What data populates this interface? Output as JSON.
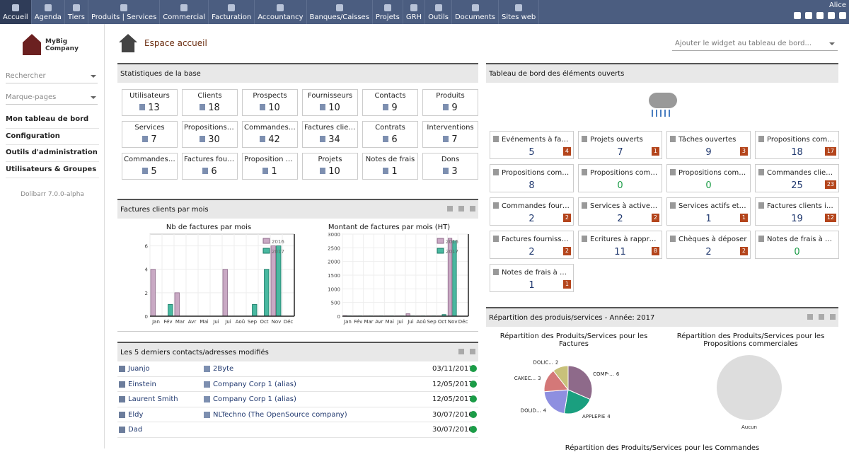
{
  "menu": [
    {
      "label": "Accueil",
      "active": true
    },
    {
      "label": "Agenda"
    },
    {
      "label": "Tiers"
    },
    {
      "label": "Produits | Services"
    },
    {
      "label": "Commercial"
    },
    {
      "label": "Facturation"
    },
    {
      "label": "Accountancy"
    },
    {
      "label": "Banques/Caisses"
    },
    {
      "label": "Projets"
    },
    {
      "label": "GRH"
    },
    {
      "label": "Outils"
    },
    {
      "label": "Documents"
    },
    {
      "label": "Sites web"
    }
  ],
  "user": "Alice",
  "logo": {
    "line1": "MyBig",
    "line2": "Company"
  },
  "sidebar": {
    "search_placeholder": "Rechercher",
    "bookmarks_placeholder": "Marque-pages",
    "nav": [
      "Mon tableau de bord",
      "Configuration",
      "Outils d'administration",
      "Utilisateurs & Groupes"
    ],
    "version": "Dolibarr 7.0.0-alpha"
  },
  "page_title": "Espace accueil",
  "widget_placeholder": "Ajouter le widget au tableau de bord...",
  "stats_box": {
    "title": "Statistiques de la base",
    "items": [
      {
        "label": "Utilisateurs",
        "value": "13"
      },
      {
        "label": "Clients",
        "value": "18"
      },
      {
        "label": "Prospects",
        "value": "10"
      },
      {
        "label": "Fournisseurs",
        "value": "10"
      },
      {
        "label": "Contacts",
        "value": "9"
      },
      {
        "label": "Produits",
        "value": "9"
      },
      {
        "label": "Services",
        "value": "7"
      },
      {
        "label": "Propositions/de...",
        "value": "30"
      },
      {
        "label": "Commandes cli...",
        "value": "42"
      },
      {
        "label": "Factures clients",
        "value": "34"
      },
      {
        "label": "Contrats",
        "value": "6"
      },
      {
        "label": "Interventions",
        "value": "7"
      },
      {
        "label": "Commandes fo...",
        "value": "5"
      },
      {
        "label": "Factures fourni...",
        "value": "6"
      },
      {
        "label": "Proposition co...",
        "value": "1"
      },
      {
        "label": "Projets",
        "value": "10"
      },
      {
        "label": "Notes de frais",
        "value": "1"
      },
      {
        "label": "Dons",
        "value": "3"
      }
    ]
  },
  "invoices_box": {
    "title": "Factures clients par mois"
  },
  "chart_data": [
    {
      "type": "bar",
      "title": "Nb de factures par mois",
      "categories": [
        "Jan",
        "Fév",
        "Mar",
        "Avr",
        "Mai",
        "Jui",
        "Jui",
        "Aoû",
        "Sep",
        "Oct",
        "Nov",
        "Déc"
      ],
      "series": [
        {
          "name": "2016",
          "values": [
            4,
            0,
            2,
            0,
            0,
            0,
            4,
            0,
            0,
            0,
            6,
            0
          ]
        },
        {
          "name": "2017",
          "values": [
            0,
            1,
            0,
            0,
            0,
            0,
            0,
            0,
            1,
            4,
            6,
            0
          ]
        }
      ],
      "ylim": [
        0,
        7
      ],
      "yticks": [
        "0",
        "2",
        "4",
        "6"
      ],
      "legend": "top-right"
    },
    {
      "type": "bar",
      "title": "Montant de factures par mois (HT)",
      "categories": [
        "Jan",
        "Fév",
        "Mar",
        "Avr",
        "Mai",
        "Jui",
        "Jui",
        "Aoû",
        "Sep",
        "Oct",
        "Nov",
        "Déc"
      ],
      "series": [
        {
          "name": "2016",
          "values": [
            20,
            10,
            10,
            10,
            10,
            10,
            90,
            10,
            10,
            10,
            2850,
            0
          ]
        },
        {
          "name": "2017",
          "values": [
            10,
            10,
            10,
            10,
            10,
            10,
            10,
            10,
            10,
            60,
            2750,
            0
          ]
        }
      ],
      "ylim": [
        0,
        3000
      ],
      "yticks": [
        "0",
        "500",
        "1000",
        "1500",
        "2000",
        "2500",
        "3000"
      ],
      "legend": "top-right"
    },
    {
      "type": "pie",
      "title": "Répartition des Produits/Services pour les Factures",
      "slices": [
        {
          "label": "COMP-...",
          "value": 6
        },
        {
          "label": "APPLEPIE",
          "value": 4
        },
        {
          "label": "DOLID...",
          "value": 4
        },
        {
          "label": "CAKEC...",
          "value": 3
        },
        {
          "label": "DOLIC...",
          "value": 2
        }
      ]
    },
    {
      "type": "pie",
      "title": "Répartition des Produits/Services pour les Propositions commerciales",
      "slices": [
        {
          "label": "Aucun",
          "value": 1
        }
      ]
    }
  ],
  "contacts_box": {
    "title": "Les 5 derniers contacts/adresses modifiés",
    "rows": [
      {
        "name": "Juanjo",
        "company": "2Byte",
        "date": "03/11/2017"
      },
      {
        "name": "Einstein",
        "company": "Company Corp 1 (alias)",
        "date": "12/05/2017"
      },
      {
        "name": "Laurent Smith",
        "company": "Company Corp 1 (alias)",
        "date": "12/05/2017"
      },
      {
        "name": "Eldy",
        "company": "NLTechno (The OpenSource company)",
        "date": "30/07/2016"
      },
      {
        "name": "Dad",
        "company": "",
        "date": "30/07/2016"
      }
    ]
  },
  "board_box": {
    "title": "Tableau de bord des éléments ouverts",
    "tiles": [
      {
        "label": "Événements à faire",
        "value": "5",
        "badge": "4"
      },
      {
        "label": "Projets ouverts",
        "value": "7",
        "badge": "1"
      },
      {
        "label": "Tâches ouvertes",
        "value": "9",
        "badge": "3"
      },
      {
        "label": "Propositions comme...",
        "value": "18",
        "badge": "17"
      },
      {
        "label": "Propositions commerc...",
        "value": "8",
        "badge": ""
      },
      {
        "label": "Propositions comme...",
        "value": "0",
        "badge": ""
      },
      {
        "label": "Propositions comme...",
        "value": "0",
        "badge": ""
      },
      {
        "label": "Commandes clients ...",
        "value": "25",
        "badge": "23"
      },
      {
        "label": "Commandes fournis...",
        "value": "2",
        "badge": "2"
      },
      {
        "label": "Services à activer en...",
        "value": "2",
        "badge": "2"
      },
      {
        "label": "Services actifs et ex...",
        "value": "1",
        "badge": "1"
      },
      {
        "label": "Factures clients imp...",
        "value": "19",
        "badge": "12"
      },
      {
        "label": "Factures fournisseur...",
        "value": "2",
        "badge": "2"
      },
      {
        "label": "Écritures à rapprocher",
        "value": "11",
        "badge": "8"
      },
      {
        "label": "Chèques à déposer",
        "value": "2",
        "badge": "2"
      },
      {
        "label": "Notes de frais à appr...",
        "value": "0",
        "badge": ""
      },
      {
        "label": "Notes de frais à payer",
        "value": "1",
        "badge": "1"
      }
    ]
  },
  "pie_box": {
    "title": "Répartition des produis/services - Année: 2017",
    "footer_title": "Répartition des Produits/Services pour les Commandes"
  },
  "colors": {
    "c2016": "#c9a9c4",
    "c2017": "#49b8a0",
    "pie": [
      "#8e6a8a",
      "#1a9f7f",
      "#8e8fe0",
      "#d47878",
      "#c8c17a"
    ],
    "empty": "#dddddd"
  }
}
